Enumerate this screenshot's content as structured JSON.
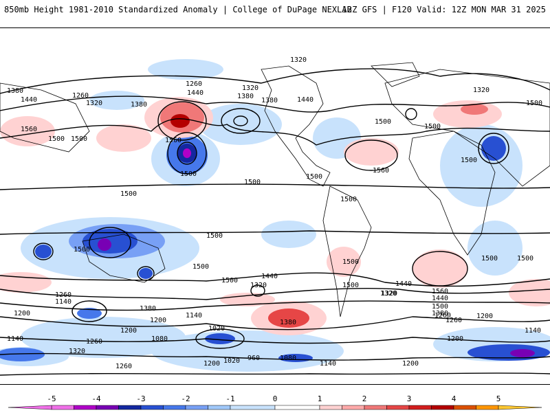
{
  "header": {
    "title_left": "850mb Height 1981-2010 Standardized Anomaly | College of DuPage NEXLAB",
    "title_right": "12Z GFS | F120 Valid: 12Z MON MAR 31 2025"
  },
  "contour_labels": [
    "1320",
    "1380",
    "1260",
    "1440",
    "1320",
    "1380",
    "1440",
    "1380",
    "1500",
    "1560",
    "1500",
    "1500",
    "1560",
    "1500",
    "1260",
    "1320",
    "1380",
    "1440",
    "1320",
    "1500",
    "1500",
    "1500",
    "1500",
    "1500",
    "1560",
    "1500",
    "1500",
    "1500",
    "1500",
    "1500",
    "1500",
    "1500",
    "1500",
    "1500",
    "1440",
    "1380",
    "1320",
    "1260",
    "1140",
    "1200",
    "1140",
    "1200",
    "1140",
    "1260",
    "1320",
    "1080",
    "1200",
    "1260",
    "1020",
    "960",
    "1020",
    "1080",
    "1200",
    "1140",
    "1200",
    "1320",
    "1260",
    "1380",
    "1320",
    "1440",
    "1500",
    "1560",
    "1440",
    "1500",
    "1380",
    "1260",
    "1200",
    "1140",
    "1200",
    "1140"
  ],
  "colorbar": {
    "colors": {
      "-5": "#f070e8",
      "-4.5": "#b000c8",
      "-4": "#7800b4",
      "-3.5": "#1428a0",
      "-3": "#2850d2",
      "-2.5": "#4678eb",
      "-2": "#78a0f5",
      "-1.5": "#a0c8fa",
      "-1": "#c8e2fc",
      "0": "#ffffff",
      "1": "#ffd2d2",
      "1.5": "#ffaaaa",
      "2": "#f07878",
      "2.5": "#e64646",
      "3": "#d21e1e",
      "3.5": "#b40000",
      "4": "#dc5000",
      "4.5": "#ff9600",
      "5": "#ffc832"
    },
    "tick_labels": [
      "-5",
      "-4",
      "-3",
      "-2",
      "-1",
      "0",
      "1",
      "2",
      "3",
      "4",
      "5"
    ]
  }
}
